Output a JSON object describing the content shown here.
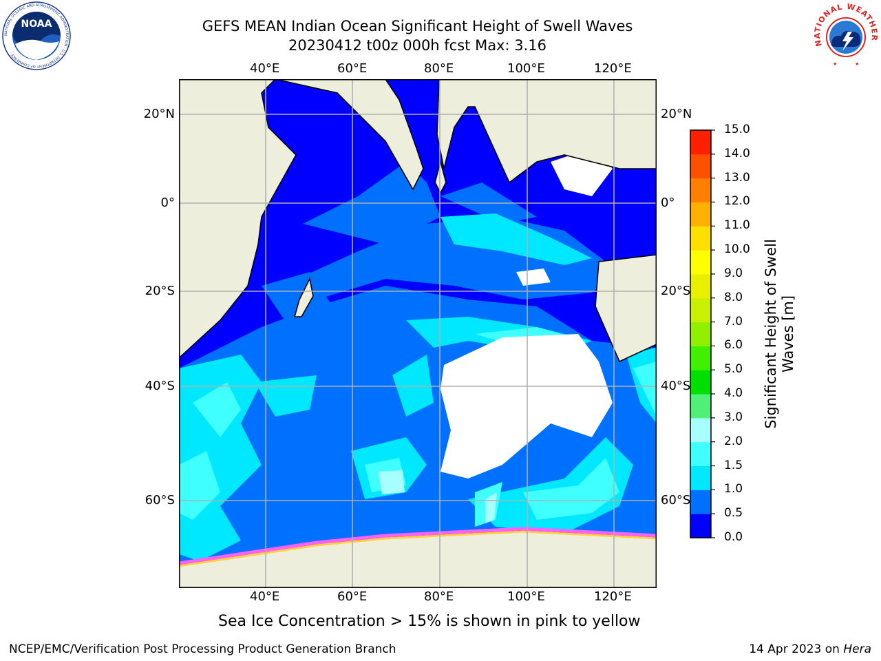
{
  "header": {
    "title_line1": "GEFS MEAN Indian Ocean Significant Height of Swell Waves",
    "title_line2": "20230412 t00z 000h fcst   Max: 3.16"
  },
  "logos": {
    "noaa_text": "NOAA",
    "noaa_ring_text": "NATIONAL OCEANIC AND ATMOSPHERIC ADMINISTRATION · U.S. DEPARTMENT OF COMMERCE",
    "nws_ring_text": "NATIONAL WEATHER SERVICE"
  },
  "map": {
    "lon_labels": [
      "40°E",
      "60°E",
      "80°E",
      "100°E",
      "120°E"
    ],
    "lat_labels": [
      "20°N",
      "0°",
      "20°S",
      "40°S",
      "60°S"
    ],
    "colors": {
      "land": "#eeeedd",
      "ocean_base": "#0000ff",
      "grid": "#b0b0b0",
      "coast": "#000000"
    }
  },
  "colorbar": {
    "label_line1": "Significant Height of Swell",
    "label_line2": "Waves [m]",
    "ticks": [
      "0.0",
      "0.5",
      "1.0",
      "1.5",
      "2.0",
      "3.0",
      "4.0",
      "5.0",
      "6.0",
      "7.0",
      "8.0",
      "9.0",
      "10.0",
      "11.0",
      "12.0",
      "13.0",
      "14.0",
      "15.0"
    ],
    "colors": [
      "#0000ff",
      "#0070ff",
      "#00e8ff",
      "#40ffff",
      "#a8ffff",
      "#50f078",
      "#00e000",
      "#40f000",
      "#90f000",
      "#c8f000",
      "#e8f000",
      "#ffff00",
      "#ffe000",
      "#ffb000",
      "#ff8000",
      "#ff5000",
      "#ff2000"
    ]
  },
  "chart_data": {
    "type": "heatmap",
    "title": "GEFS MEAN Indian Ocean Significant Height of Swell Waves",
    "subtitle": "20230412 t00z 000h fcst   Max: 3.16",
    "variable": "Significant Height of Swell Waves [m]",
    "max_value": 3.16,
    "lon_ticks": [
      40,
      60,
      80,
      100,
      120
    ],
    "lat_ticks": [
      20,
      0,
      -20,
      -40,
      -60
    ],
    "lon_range": [
      20,
      130
    ],
    "lat_range": [
      -70,
      28
    ],
    "color_levels": [
      0.0,
      0.5,
      1.0,
      1.5,
      2.0,
      3.0,
      4.0,
      5.0,
      6.0,
      7.0,
      8.0,
      9.0,
      10.0,
      11.0,
      12.0,
      13.0,
      14.0,
      15.0
    ],
    "grid": true
  },
  "annotations": {
    "ice_note": "Sea Ice Concentration > 15% is shown in pink to yellow",
    "footer_left": "NCEP/EMC/Verification Post Processing Product Generation Branch",
    "footer_date": "14 Apr 2023 on ",
    "footer_host": "Hera"
  }
}
